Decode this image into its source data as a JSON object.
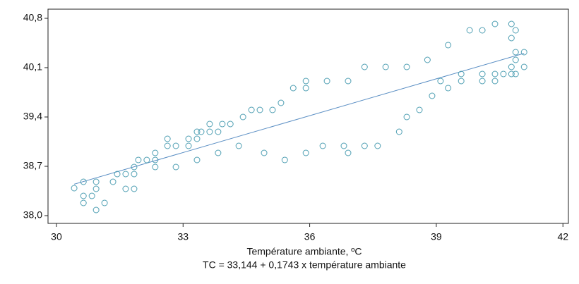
{
  "chart_data": {
    "type": "scatter",
    "x_label": "Température ambiante, ºC",
    "equation": "TC = 33,144 + 0,1743 x température ambiante",
    "xlim": [
      29.8,
      42.13
    ],
    "ylim": [
      37.89,
      40.93
    ],
    "xticks": [
      30,
      33,
      36,
      39,
      42
    ],
    "yticks": [
      {
        "value": 38.0,
        "label": "38,0"
      },
      {
        "value": 38.7,
        "label": "38,7"
      },
      {
        "value": 39.4,
        "label": "39,4"
      },
      {
        "value": 40.1,
        "label": "40,1"
      },
      {
        "value": 40.8,
        "label": "40,8"
      }
    ],
    "series": [
      {
        "color": "#4f9fb3",
        "x": [
          30.42,
          30.64,
          30.64,
          30.64,
          30.84,
          30.94,
          30.94,
          30.94,
          31.14,
          31.34,
          31.44,
          31.64,
          31.64,
          31.84,
          31.84,
          31.84,
          31.94,
          32.14,
          32.34,
          32.34,
          32.34,
          32.63,
          32.63,
          32.83,
          32.83,
          33.13,
          33.13,
          33.33,
          33.33,
          33.33,
          33.43,
          33.63,
          33.63,
          33.83,
          33.83,
          33.93,
          34.12,
          34.32,
          34.42,
          34.62,
          34.82,
          34.92,
          35.12,
          35.32,
          35.41,
          35.61,
          35.91,
          35.91,
          35.91,
          36.41,
          36.31,
          36.81,
          36.91,
          36.91,
          37.3,
          37.3,
          37.61,
          37.8,
          38.12,
          38.3,
          38.3,
          38.6,
          38.79,
          38.9,
          39.1,
          39.28,
          39.28,
          39.59,
          39.59,
          39.79,
          40.09,
          40.09,
          40.09,
          40.39,
          40.39,
          40.39,
          40.59,
          40.78,
          40.78,
          40.78,
          40.78,
          40.88,
          40.88,
          40.88,
          40.88,
          41.08,
          41.08
        ],
        "values": [
          38.39,
          38.48,
          38.28,
          38.18,
          38.28,
          38.48,
          38.38,
          38.08,
          38.18,
          38.48,
          38.59,
          38.59,
          38.38,
          38.69,
          38.59,
          38.38,
          38.79,
          38.79,
          38.89,
          38.79,
          38.69,
          39.09,
          38.99,
          38.99,
          38.69,
          39.09,
          38.99,
          39.19,
          39.09,
          38.79,
          39.19,
          39.19,
          39.3,
          39.19,
          38.89,
          39.3,
          39.3,
          38.99,
          39.4,
          39.5,
          39.5,
          38.89,
          39.5,
          39.6,
          38.79,
          39.81,
          39.91,
          39.81,
          38.89,
          39.91,
          38.99,
          38.99,
          39.91,
          38.89,
          40.11,
          38.99,
          38.99,
          40.11,
          39.19,
          40.11,
          39.4,
          39.5,
          40.21,
          39.7,
          39.91,
          39.81,
          40.42,
          39.91,
          40.01,
          40.63,
          40.63,
          40.01,
          39.91,
          40.72,
          40.01,
          39.91,
          40.01,
          40.72,
          40.52,
          40.11,
          40.01,
          40.63,
          40.32,
          40.21,
          40.01,
          40.32,
          40.11
        ]
      }
    ],
    "fit_line": {
      "color": "#5b8fc4",
      "x": [
        30.42,
        41.08
      ],
      "values": [
        38.446,
        40.304
      ]
    }
  }
}
